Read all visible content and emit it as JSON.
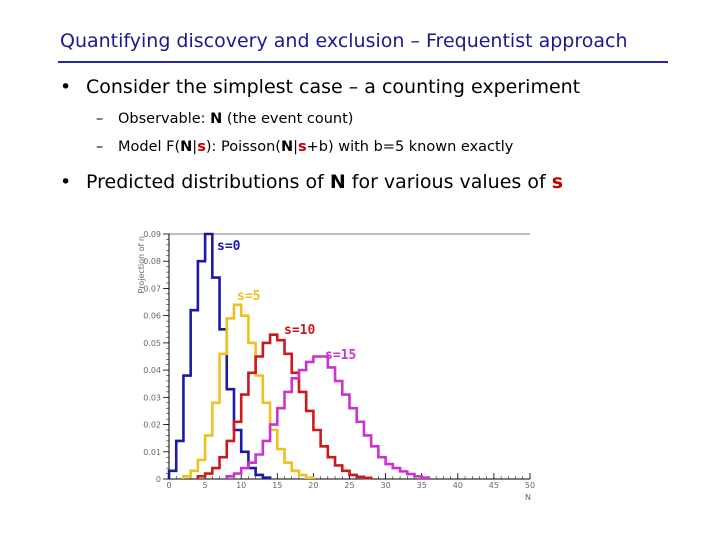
{
  "slide": {
    "title": "Quantifying discovery and exclusion – Frequentist approach",
    "bullet1": {
      "bullet": "•",
      "text": "Consider the simplest case – a counting experiment"
    },
    "sub1": {
      "dash": "–",
      "prefix": "Observable: ",
      "bold": "N",
      "suffix": " (the event count)"
    },
    "sub2": {
      "dash": "–",
      "p1": "Model F(",
      "n1": "N",
      "bar1": "|",
      "s1": "s",
      "p2": "): Poisson(",
      "n2": "N",
      "bar2": "|",
      "s2": "s",
      "p3": "+b) with b=5 known exactly"
    },
    "bullet2": {
      "bullet": "•",
      "p1": "Predicted distributions of ",
      "n": "N",
      "p2": " for various values of ",
      "s": "s"
    }
  },
  "chart_data": {
    "type": "step-histogram",
    "xlabel": "N",
    "ylabel": "Projection of n",
    "xlim": [
      0,
      50
    ],
    "ylim": [
      0,
      0.09
    ],
    "xticks": [
      "0",
      "5",
      "10",
      "15",
      "20",
      "25",
      "30",
      "35",
      "40",
      "45",
      "50"
    ],
    "yticks": [
      "0",
      "0.01",
      "0.02",
      "0.03",
      "0.04",
      "0.05",
      "0.06",
      "0.07",
      "0.08",
      "0.09"
    ],
    "bin_width": 1,
    "series": [
      {
        "name": "s=0",
        "color": "#1a1aa6",
        "bins_start": 0,
        "values": [
          0.003,
          0.014,
          0.038,
          0.062,
          0.08,
          0.09,
          0.074,
          0.055,
          0.033,
          0.018,
          0.01,
          0.004,
          0.0015,
          0.0005
        ]
      },
      {
        "name": "s=5",
        "color": "#f0c020",
        "bins_start": 2,
        "values": [
          0.001,
          0.003,
          0.007,
          0.016,
          0.028,
          0.046,
          0.059,
          0.064,
          0.06,
          0.05,
          0.038,
          0.028,
          0.018,
          0.011,
          0.006,
          0.003,
          0.0015,
          0.0005
        ]
      },
      {
        "name": "s=10",
        "color": "#cc1a1a",
        "bins_start": 4,
        "values": [
          0.001,
          0.002,
          0.004,
          0.008,
          0.014,
          0.021,
          0.031,
          0.039,
          0.045,
          0.05,
          0.053,
          0.051,
          0.046,
          0.039,
          0.032,
          0.025,
          0.018,
          0.012,
          0.008,
          0.005,
          0.003,
          0.0015,
          0.0008,
          0.0004
        ]
      },
      {
        "name": "s=15",
        "color": "#cc33cc",
        "bins_start": 8,
        "values": [
          0.001,
          0.002,
          0.004,
          0.006,
          0.009,
          0.014,
          0.02,
          0.026,
          0.032,
          0.037,
          0.04,
          0.043,
          0.045,
          0.045,
          0.041,
          0.036,
          0.031,
          0.026,
          0.021,
          0.016,
          0.012,
          0.008,
          0.0055,
          0.004,
          0.0028,
          0.0018,
          0.001,
          0.0005
        ]
      }
    ]
  }
}
